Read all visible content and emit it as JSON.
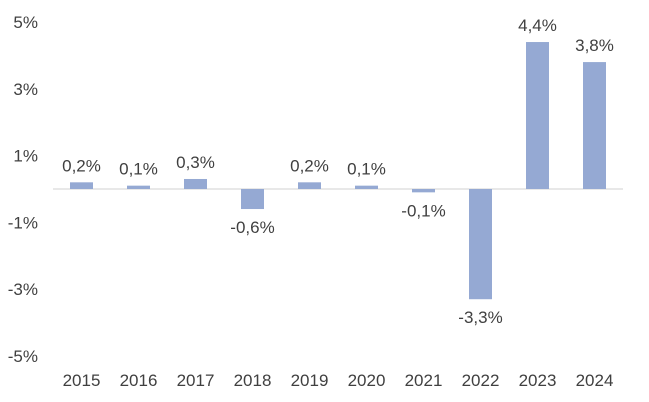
{
  "chart_data": {
    "type": "bar",
    "title": "",
    "xlabel": "",
    "ylabel": "",
    "categories": [
      "2015",
      "2016",
      "2017",
      "2018",
      "2019",
      "2020",
      "2021",
      "2022",
      "2023",
      "2024"
    ],
    "values": [
      0.2,
      0.1,
      0.3,
      -0.6,
      0.2,
      0.1,
      -0.1,
      -3.3,
      4.4,
      3.8
    ],
    "data_labels": [
      "0,2%",
      "0,1%",
      "0,3%",
      "-0,6%",
      "0,2%",
      "0,1%",
      "-0,1%",
      "-3,3%",
      "4,4%",
      "3,8%"
    ],
    "ylim": [
      -5,
      5
    ],
    "yticks": [
      5,
      3,
      1,
      -1,
      -3,
      -5
    ],
    "ytick_labels": [
      "5%",
      "3%",
      "1%",
      "-1%",
      "-3%",
      "-5%"
    ],
    "grid": false,
    "legend": "none",
    "bar_color": "#95a9d3",
    "zero_line_color": "#d9d9d9"
  }
}
